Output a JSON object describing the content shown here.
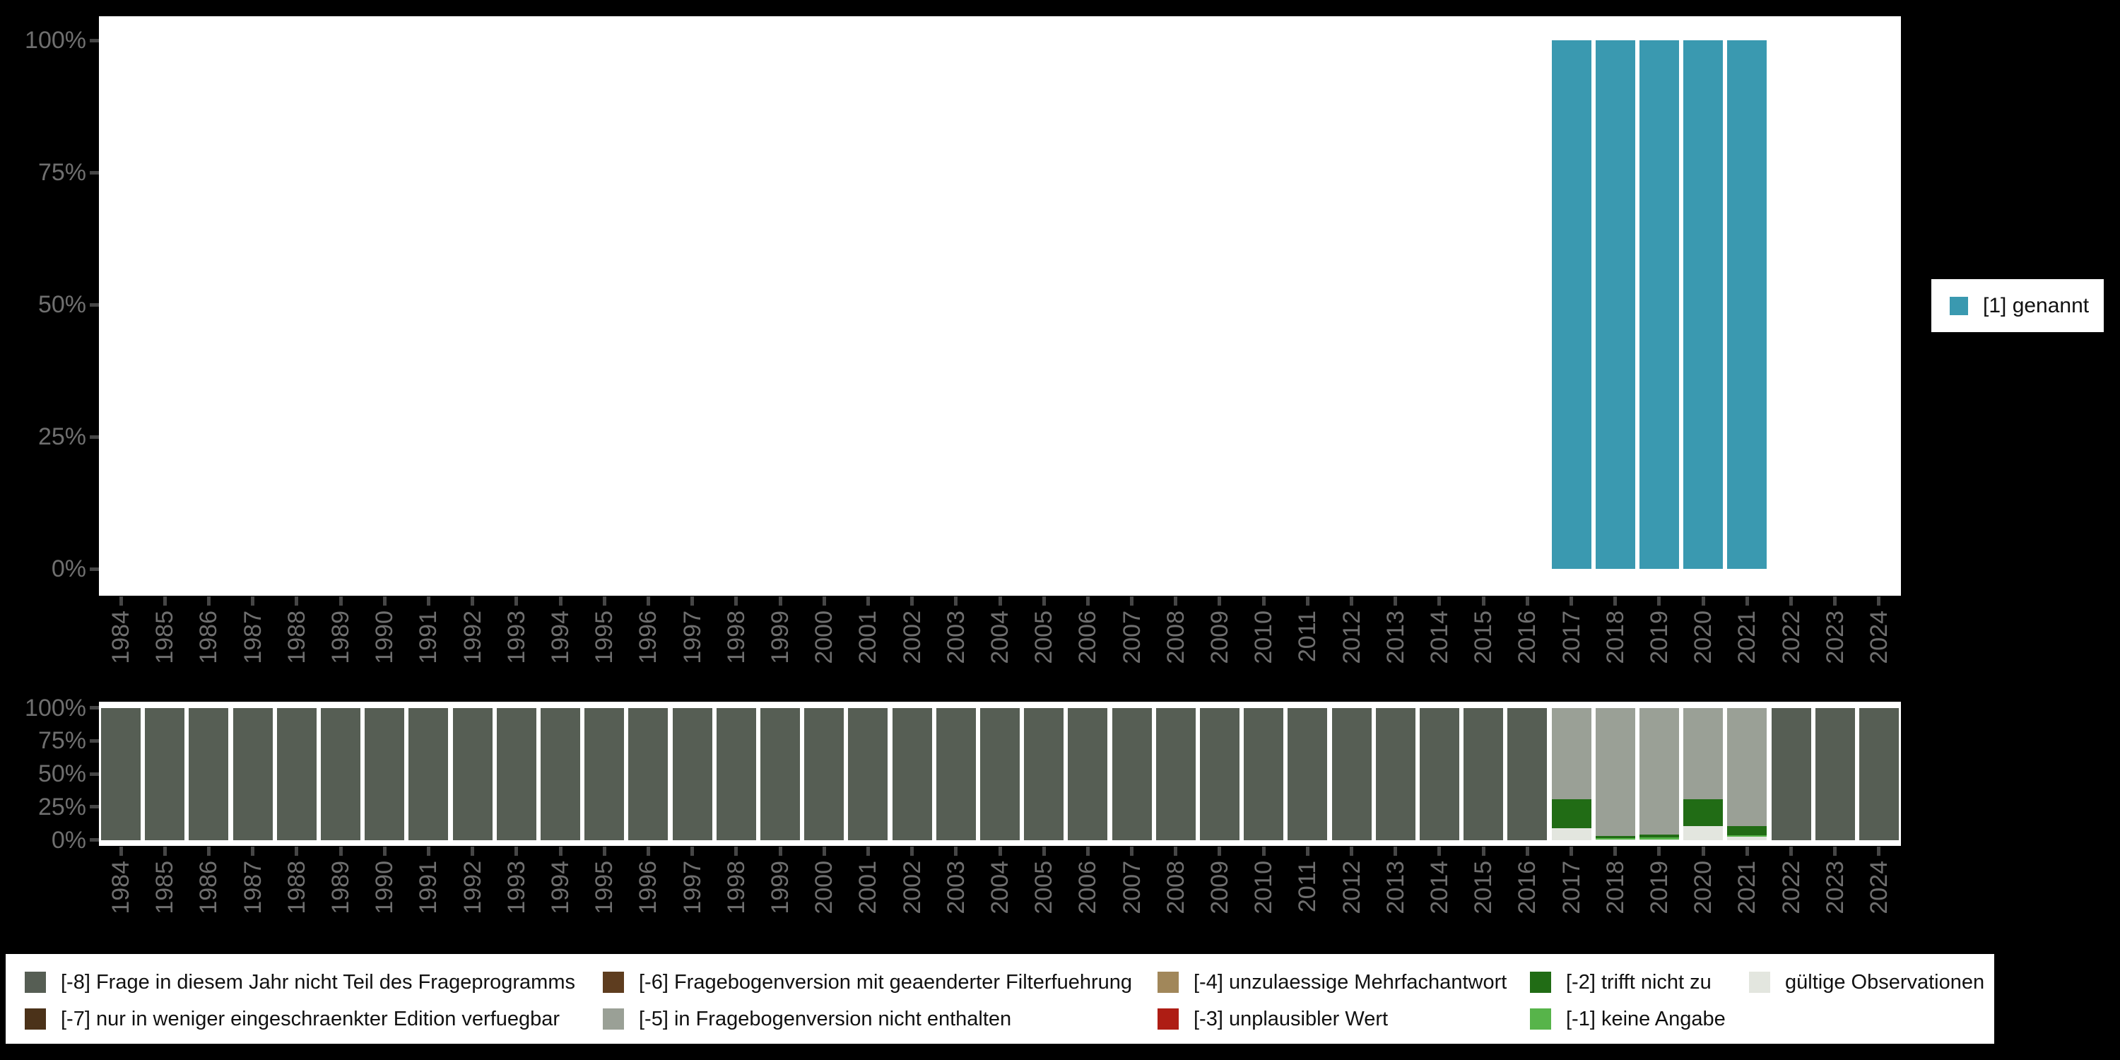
{
  "palette": {
    "genannt": "#3a99b0",
    "m8": "#565e54",
    "m7": "#4b3219",
    "m6": "#5e3d1f",
    "m5": "#9aa096",
    "m4": "#a1875a",
    "m3": "#ae1d14",
    "m2": "#216c15",
    "m1": "#57b44a",
    "valid": "#e3e6df"
  },
  "axis": {
    "y_tick_values": [
      0,
      25,
      50,
      75,
      100
    ],
    "y_tick_labels": [
      "0%",
      "25%",
      "50%",
      "75%",
      "100%"
    ]
  },
  "top_legend": {
    "label": "[1] genannt",
    "key": "genannt"
  },
  "bottom_legend": {
    "rows": [
      [
        {
          "key": "m8",
          "label": "[-8] Frage in diesem Jahr nicht Teil des Frageprogramms"
        },
        {
          "key": "m6",
          "label": "[-6] Fragebogenversion mit geaenderter Filterfuehrung"
        },
        {
          "key": "m4",
          "label": "[-4] unzulaessige Mehrfachantwort"
        },
        {
          "key": "m2",
          "label": "[-2] trifft nicht zu"
        },
        {
          "key": "valid",
          "label": "gültige Observationen"
        }
      ],
      [
        {
          "key": "m7",
          "label": "[-7] nur in weniger eingeschraenkter Edition verfuegbar"
        },
        {
          "key": "m5",
          "label": "[-5] in Fragebogenversion nicht enthalten"
        },
        {
          "key": "m3",
          "label": "[-3] unplausibler Wert"
        },
        {
          "key": "m1",
          "label": "[-1] keine Angabe"
        }
      ]
    ]
  },
  "chart_data": [
    {
      "type": "bar",
      "title": "",
      "xlabel": "",
      "ylabel": "",
      "ylim": [
        0,
        100
      ],
      "grid": false,
      "legend_position": "right",
      "categories": [
        "1984",
        "1985",
        "1986",
        "1987",
        "1988",
        "1989",
        "1990",
        "1991",
        "1992",
        "1993",
        "1994",
        "1995",
        "1996",
        "1997",
        "1998",
        "1999",
        "2000",
        "2001",
        "2002",
        "2003",
        "2004",
        "2005",
        "2006",
        "2007",
        "2008",
        "2009",
        "2010",
        "2011",
        "2012",
        "2013",
        "2014",
        "2015",
        "2016",
        "2017",
        "2018",
        "2019",
        "2020",
        "2021",
        "2022",
        "2023",
        "2024"
      ],
      "series": [
        {
          "name": "[1] genannt",
          "color_key": "genannt",
          "values": [
            0,
            0,
            0,
            0,
            0,
            0,
            0,
            0,
            0,
            0,
            0,
            0,
            0,
            0,
            0,
            0,
            0,
            0,
            0,
            0,
            0,
            0,
            0,
            0,
            0,
            0,
            0,
            0,
            0,
            0,
            0,
            0,
            0,
            100,
            100,
            100,
            100,
            100,
            0,
            0,
            0
          ]
        }
      ]
    },
    {
      "type": "bar",
      "subtype": "stacked-percent",
      "title": "",
      "xlabel": "",
      "ylabel": "",
      "ylim": [
        0,
        100
      ],
      "grid": false,
      "legend_position": "bottom",
      "stack_order_bottom_to_top": [
        "valid",
        "m1",
        "m2",
        "m5",
        "m8"
      ],
      "categories": [
        "1984",
        "1985",
        "1986",
        "1987",
        "1988",
        "1989",
        "1990",
        "1991",
        "1992",
        "1993",
        "1994",
        "1995",
        "1996",
        "1997",
        "1998",
        "1999",
        "2000",
        "2001",
        "2002",
        "2003",
        "2004",
        "2005",
        "2006",
        "2007",
        "2008",
        "2009",
        "2010",
        "2011",
        "2012",
        "2013",
        "2014",
        "2015",
        "2016",
        "2017",
        "2018",
        "2019",
        "2020",
        "2021",
        "2022",
        "2023",
        "2024"
      ],
      "bars": [
        {
          "year": "1984",
          "segments": [
            [
              "m8",
              100
            ]
          ]
        },
        {
          "year": "1985",
          "segments": [
            [
              "m8",
              100
            ]
          ]
        },
        {
          "year": "1986",
          "segments": [
            [
              "m8",
              100
            ]
          ]
        },
        {
          "year": "1987",
          "segments": [
            [
              "m8",
              100
            ]
          ]
        },
        {
          "year": "1988",
          "segments": [
            [
              "m8",
              100
            ]
          ]
        },
        {
          "year": "1989",
          "segments": [
            [
              "m8",
              100
            ]
          ]
        },
        {
          "year": "1990",
          "segments": [
            [
              "m8",
              100
            ]
          ]
        },
        {
          "year": "1991",
          "segments": [
            [
              "m8",
              100
            ]
          ]
        },
        {
          "year": "1992",
          "segments": [
            [
              "m8",
              100
            ]
          ]
        },
        {
          "year": "1993",
          "segments": [
            [
              "m8",
              100
            ]
          ]
        },
        {
          "year": "1994",
          "segments": [
            [
              "m8",
              100
            ]
          ]
        },
        {
          "year": "1995",
          "segments": [
            [
              "m8",
              100
            ]
          ]
        },
        {
          "year": "1996",
          "segments": [
            [
              "m8",
              100
            ]
          ]
        },
        {
          "year": "1997",
          "segments": [
            [
              "m8",
              100
            ]
          ]
        },
        {
          "year": "1998",
          "segments": [
            [
              "m8",
              100
            ]
          ]
        },
        {
          "year": "1999",
          "segments": [
            [
              "m8",
              100
            ]
          ]
        },
        {
          "year": "2000",
          "segments": [
            [
              "m8",
              100
            ]
          ]
        },
        {
          "year": "2001",
          "segments": [
            [
              "m8",
              100
            ]
          ]
        },
        {
          "year": "2002",
          "segments": [
            [
              "m8",
              100
            ]
          ]
        },
        {
          "year": "2003",
          "segments": [
            [
              "m8",
              100
            ]
          ]
        },
        {
          "year": "2004",
          "segments": [
            [
              "m8",
              100
            ]
          ]
        },
        {
          "year": "2005",
          "segments": [
            [
              "m8",
              100
            ]
          ]
        },
        {
          "year": "2006",
          "segments": [
            [
              "m8",
              100
            ]
          ]
        },
        {
          "year": "2007",
          "segments": [
            [
              "m8",
              100
            ]
          ]
        },
        {
          "year": "2008",
          "segments": [
            [
              "m8",
              100
            ]
          ]
        },
        {
          "year": "2009",
          "segments": [
            [
              "m8",
              100
            ]
          ]
        },
        {
          "year": "2010",
          "segments": [
            [
              "m8",
              100
            ]
          ]
        },
        {
          "year": "2011",
          "segments": [
            [
              "m8",
              100
            ]
          ]
        },
        {
          "year": "2012",
          "segments": [
            [
              "m8",
              100
            ]
          ]
        },
        {
          "year": "2013",
          "segments": [
            [
              "m8",
              100
            ]
          ]
        },
        {
          "year": "2014",
          "segments": [
            [
              "m8",
              100
            ]
          ]
        },
        {
          "year": "2015",
          "segments": [
            [
              "m8",
              100
            ]
          ]
        },
        {
          "year": "2016",
          "segments": [
            [
              "m8",
              100
            ]
          ]
        },
        {
          "year": "2017",
          "segments": [
            [
              "valid",
              8.8
            ],
            [
              "m2",
              21.9
            ],
            [
              "m5",
              69.3
            ]
          ]
        },
        {
          "year": "2018",
          "segments": [
            [
              "valid",
              0.5
            ],
            [
              "m1",
              0.9
            ],
            [
              "m2",
              1.8
            ],
            [
              "m5",
              96.8
            ]
          ]
        },
        {
          "year": "2019",
          "segments": [
            [
              "valid",
              0.5
            ],
            [
              "m1",
              1.2
            ],
            [
              "m2",
              2.5
            ],
            [
              "m5",
              95.8
            ]
          ]
        },
        {
          "year": "2020",
          "segments": [
            [
              "valid",
              10.2
            ],
            [
              "m2",
              20.3
            ],
            [
              "m5",
              69.5
            ]
          ]
        },
        {
          "year": "2021",
          "segments": [
            [
              "valid",
              2.5
            ],
            [
              "m1",
              1.1
            ],
            [
              "m2",
              6.7
            ],
            [
              "m5",
              89.7
            ]
          ]
        },
        {
          "year": "2022",
          "segments": [
            [
              "m8",
              100
            ]
          ]
        },
        {
          "year": "2023",
          "segments": [
            [
              "m8",
              100
            ]
          ]
        },
        {
          "year": "2024",
          "segments": [
            [
              "m8",
              100
            ]
          ]
        }
      ]
    }
  ]
}
